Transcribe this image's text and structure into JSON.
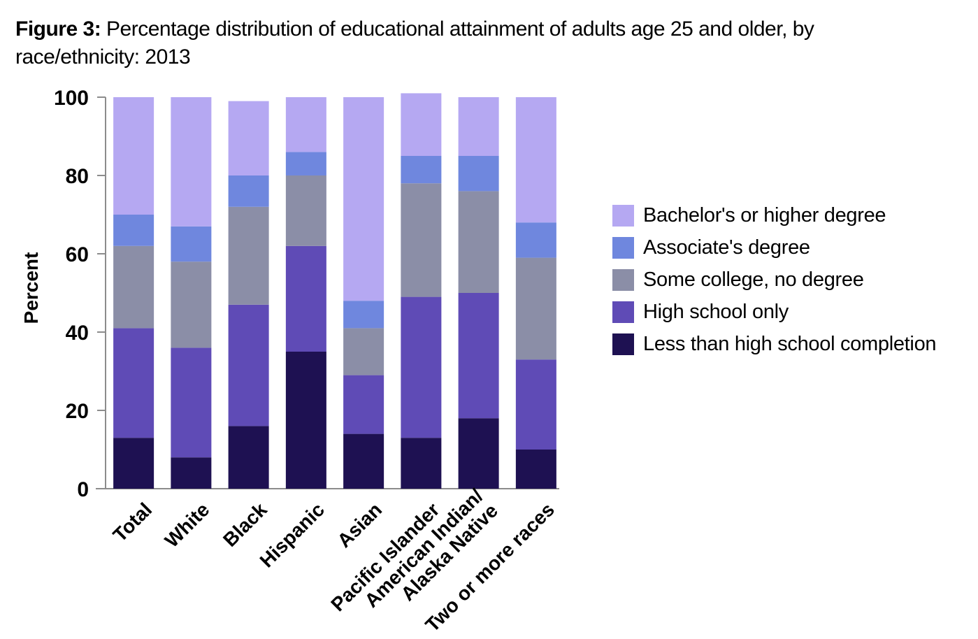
{
  "title": {
    "prefix": "Figure 3:",
    "text": "Percentage distribution of educational attainment of adults age 25 and older, by race/ethnicity: 2013"
  },
  "chart_data": {
    "type": "bar",
    "stacked": true,
    "title": "Figure 3: Percentage distribution of educational attainment of adults age 25 and older, by race/ethnicity: 2013",
    "xlabel": "",
    "ylabel": "Percent",
    "ylim": [
      0,
      100
    ],
    "yticks": [
      0,
      20,
      40,
      60,
      80,
      100
    ],
    "grid": false,
    "legend_position": "right",
    "categories": [
      [
        "Total"
      ],
      [
        "White"
      ],
      [
        "Black"
      ],
      [
        "Hispanic"
      ],
      [
        "Asian"
      ],
      [
        "Pacific Islander"
      ],
      [
        "American Indian/",
        "Alaska Native"
      ],
      [
        "Two or more races"
      ]
    ],
    "series": [
      {
        "name": "Less than high school completion",
        "color": "#1e1152",
        "values": [
          13,
          8,
          16,
          35,
          14,
          13,
          18,
          10
        ]
      },
      {
        "name": "High school only",
        "color": "#5f4bb6",
        "values": [
          28,
          28,
          31,
          27,
          15,
          36,
          32,
          23
        ]
      },
      {
        "name": "Some college, no degree",
        "color": "#8b8ea7",
        "values": [
          21,
          22,
          25,
          18,
          12,
          29,
          26,
          26
        ]
      },
      {
        "name": "Associate's degree",
        "color": "#6f87de",
        "values": [
          8,
          9,
          8,
          6,
          7,
          7,
          9,
          9
        ]
      },
      {
        "name": "Bachelor's or higher degree",
        "color": "#b5a8f2",
        "values": [
          30,
          33,
          19,
          14,
          52,
          16,
          15,
          32
        ]
      }
    ]
  }
}
